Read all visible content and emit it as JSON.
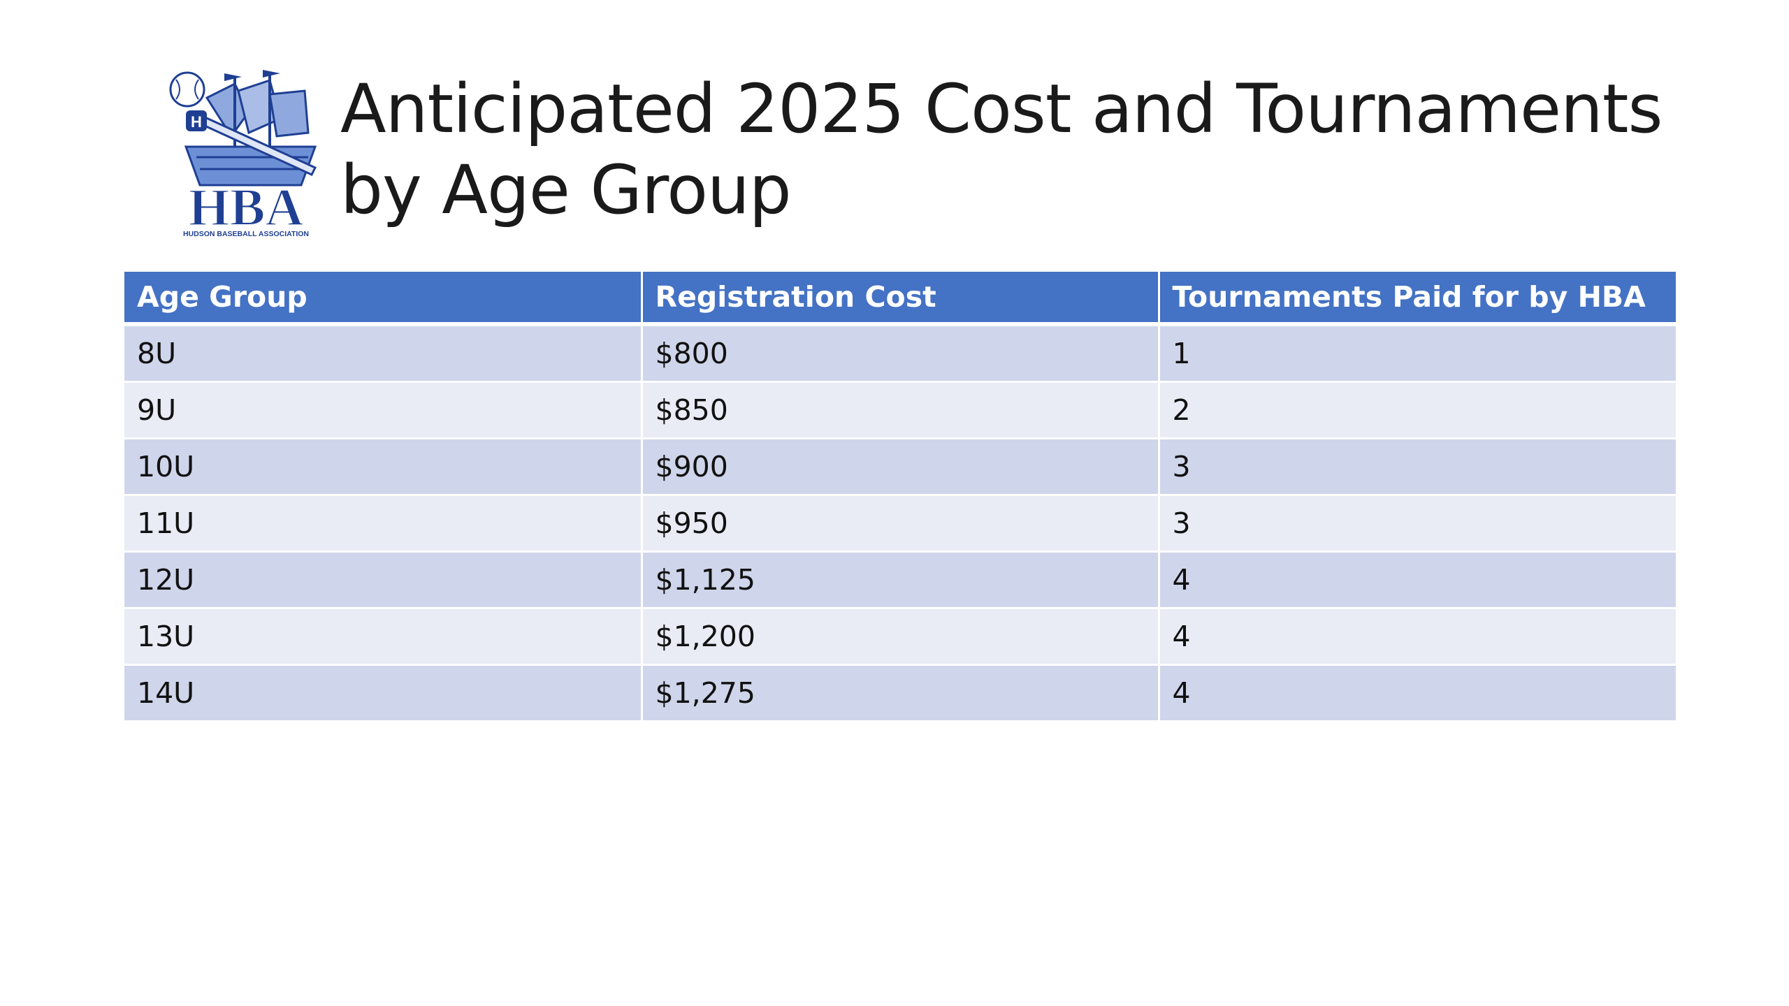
{
  "slide": {
    "title": "Anticipated 2025 Cost and Tournaments by Age Group",
    "logo": {
      "icon": "hba-ship-logo-icon",
      "text": "HBA",
      "subtext": "HUDSON BASEBALL ASSOCIATION",
      "badge": "H",
      "colors": {
        "primary": "#1f3f93",
        "secondary": "#6c8fd6"
      }
    }
  },
  "table": {
    "headers": [
      "Age Group",
      "Registration Cost",
      "Tournaments Paid for by HBA"
    ],
    "rows": [
      [
        "8U",
        "$800",
        "1"
      ],
      [
        "9U",
        "$850",
        "2"
      ],
      [
        "10U",
        "$900",
        "3"
      ],
      [
        "11U",
        "$950",
        "3"
      ],
      [
        "12U",
        "$1,125",
        "4"
      ],
      [
        "13U",
        "$1,200",
        "4"
      ],
      [
        "14U",
        "$1,275",
        "4"
      ]
    ],
    "colors": {
      "header": "#4472c4",
      "row_odd": "#cfd5ea",
      "row_even": "#e9ebf5"
    }
  }
}
